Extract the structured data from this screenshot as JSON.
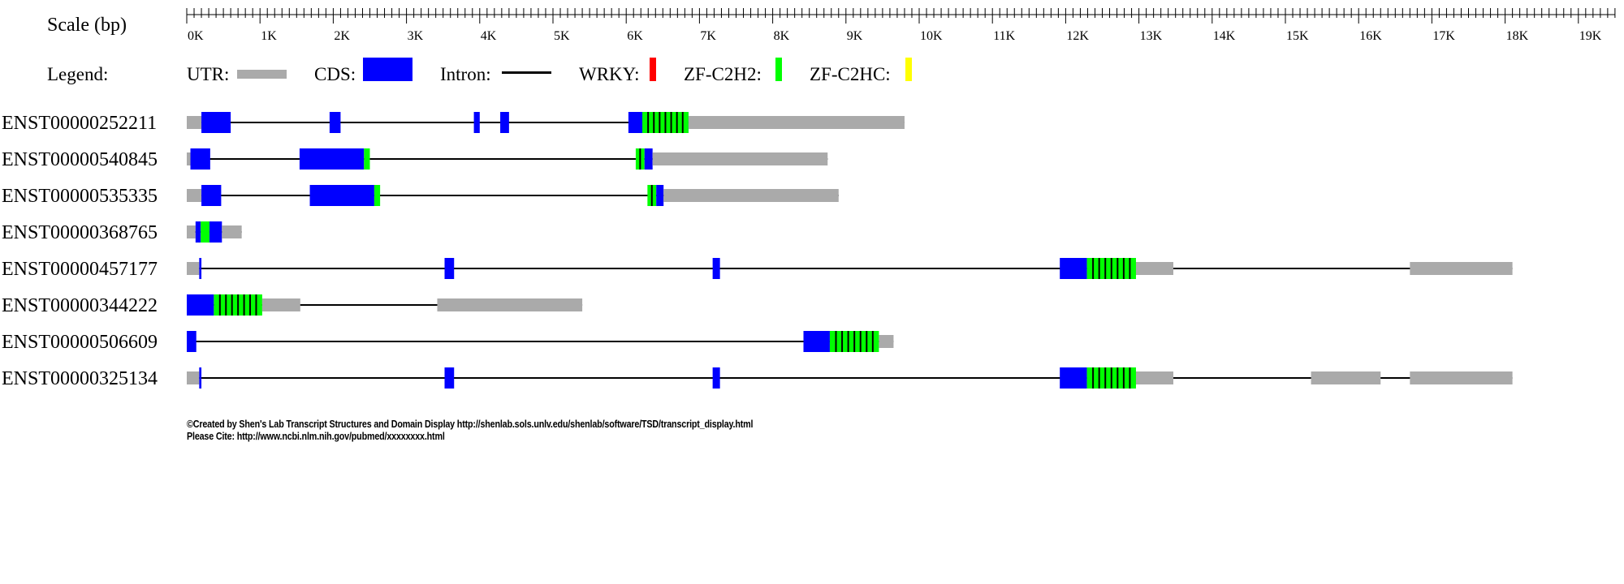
{
  "scale": {
    "label": "Scale (bp)",
    "max_bp": 19500,
    "tick_labels": [
      "0K",
      "1K",
      "2K",
      "3K",
      "4K",
      "5K",
      "6K",
      "7K",
      "8K",
      "9K",
      "10K",
      "11K",
      "12K",
      "13K",
      "14K",
      "15K",
      "16K",
      "17K",
      "18K",
      "19K"
    ]
  },
  "legend": {
    "label": "Legend:",
    "items": [
      {
        "key": "utr",
        "label": "UTR:",
        "color": "#aaaaaa"
      },
      {
        "key": "cds",
        "label": "CDS:",
        "color": "#0000ff"
      },
      {
        "key": "intron",
        "label": "Intron:",
        "color": "#000000"
      },
      {
        "key": "wrky",
        "label": "WRKY:",
        "color": "#ff0000"
      },
      {
        "key": "zf_c2h2",
        "label": "ZF-C2H2:",
        "color": "#00ff00"
      },
      {
        "key": "zf_c2hc",
        "label": "ZF-C2HC:",
        "color": "#ffff00"
      }
    ]
  },
  "colors": {
    "utr": "#aaaaaa",
    "cds": "#0000ff",
    "intron": "#000000",
    "zf_c2h2": "#00ff00",
    "domain_divider": "#000000"
  },
  "transcripts": [
    {
      "id": "ENST00000252211",
      "start": 0,
      "end": 9800,
      "features": [
        {
          "type": "utr",
          "start": 0,
          "end": 200
        },
        {
          "type": "cds",
          "start": 200,
          "end": 600
        },
        {
          "type": "cds",
          "start": 1950,
          "end": 2100
        },
        {
          "type": "cds",
          "start": 3920,
          "end": 4000
        },
        {
          "type": "cds",
          "start": 4280,
          "end": 4400
        },
        {
          "type": "cds",
          "start": 6030,
          "end": 6850
        },
        {
          "type": "zf_c2h2",
          "start": 6220,
          "end": 6850,
          "bands": 8
        },
        {
          "type": "utr",
          "start": 6850,
          "end": 9800
        }
      ]
    },
    {
      "id": "ENST00000540845",
      "start": 0,
      "end": 8750,
      "features": [
        {
          "type": "utr",
          "start": 0,
          "end": 50
        },
        {
          "type": "cds",
          "start": 50,
          "end": 320
        },
        {
          "type": "cds",
          "start": 1540,
          "end": 2420
        },
        {
          "type": "zf_c2h2",
          "start": 2420,
          "end": 2500,
          "bands": 1
        },
        {
          "type": "zf_c2h2",
          "start": 6130,
          "end": 6250,
          "bands": 2
        },
        {
          "type": "cds",
          "start": 6250,
          "end": 6360
        },
        {
          "type": "utr",
          "start": 6360,
          "end": 8750
        }
      ]
    },
    {
      "id": "ENST00000535335",
      "start": 0,
      "end": 8900,
      "features": [
        {
          "type": "utr",
          "start": 0,
          "end": 200
        },
        {
          "type": "cds",
          "start": 200,
          "end": 470
        },
        {
          "type": "cds",
          "start": 1680,
          "end": 2560
        },
        {
          "type": "zf_c2h2",
          "start": 2560,
          "end": 2640,
          "bands": 1
        },
        {
          "type": "zf_c2h2",
          "start": 6290,
          "end": 6410,
          "bands": 2
        },
        {
          "type": "cds",
          "start": 6410,
          "end": 6510
        },
        {
          "type": "utr",
          "start": 6510,
          "end": 8900
        }
      ]
    },
    {
      "id": "ENST00000368765",
      "start": 0,
      "end": 750,
      "features": [
        {
          "type": "utr",
          "start": 0,
          "end": 120
        },
        {
          "type": "cds",
          "start": 120,
          "end": 190
        },
        {
          "type": "zf_c2h2",
          "start": 190,
          "end": 310,
          "bands": 1
        },
        {
          "type": "cds",
          "start": 310,
          "end": 480
        },
        {
          "type": "utr",
          "start": 480,
          "end": 750
        }
      ]
    },
    {
      "id": "ENST00000457177",
      "start": 0,
      "end": 18100,
      "features": [
        {
          "type": "utr",
          "start": 0,
          "end": 170
        },
        {
          "type": "cds",
          "start": 170,
          "end": 200
        },
        {
          "type": "cds",
          "start": 3520,
          "end": 3650
        },
        {
          "type": "cds",
          "start": 7180,
          "end": 7280
        },
        {
          "type": "cds",
          "start": 11920,
          "end": 12290
        },
        {
          "type": "zf_c2h2",
          "start": 12290,
          "end": 12960,
          "bands": 8
        },
        {
          "type": "utr",
          "start": 12960,
          "end": 13470
        },
        {
          "type": "utr",
          "start": 16700,
          "end": 18100
        }
      ]
    },
    {
      "id": "ENST00000344222",
      "start": 0,
      "end": 5400,
      "features": [
        {
          "type": "cds",
          "start": 0,
          "end": 370
        },
        {
          "type": "zf_c2h2",
          "start": 370,
          "end": 1030,
          "bands": 8
        },
        {
          "type": "utr",
          "start": 1030,
          "end": 1550
        },
        {
          "type": "utr",
          "start": 3420,
          "end": 5400
        }
      ]
    },
    {
      "id": "ENST00000506609",
      "start": 0,
      "end": 9650,
      "features": [
        {
          "type": "cds",
          "start": 0,
          "end": 130
        },
        {
          "type": "cds",
          "start": 8420,
          "end": 8780
        },
        {
          "type": "zf_c2h2",
          "start": 8780,
          "end": 9450,
          "bands": 8
        },
        {
          "type": "utr",
          "start": 9450,
          "end": 9650
        }
      ]
    },
    {
      "id": "ENST00000325134",
      "start": 0,
      "end": 18100,
      "features": [
        {
          "type": "utr",
          "start": 0,
          "end": 170
        },
        {
          "type": "cds",
          "start": 170,
          "end": 200
        },
        {
          "type": "cds",
          "start": 3520,
          "end": 3650
        },
        {
          "type": "cds",
          "start": 7180,
          "end": 7280
        },
        {
          "type": "cds",
          "start": 11920,
          "end": 12290
        },
        {
          "type": "zf_c2h2",
          "start": 12290,
          "end": 12960,
          "bands": 8
        },
        {
          "type": "utr",
          "start": 12960,
          "end": 13470
        },
        {
          "type": "utr",
          "start": 15350,
          "end": 16300
        },
        {
          "type": "utr",
          "start": 16700,
          "end": 18100
        }
      ]
    }
  ],
  "footer": {
    "line1": "©Created by Shen's Lab Transcript Structures and Domain Display http://shenlab.sols.unlv.edu/shenlab/software/TSD/transcript_display.html",
    "line2": "Please Cite: http://www.ncbi.nlm.nih.gov/pubmed/xxxxxxxx.html"
  }
}
